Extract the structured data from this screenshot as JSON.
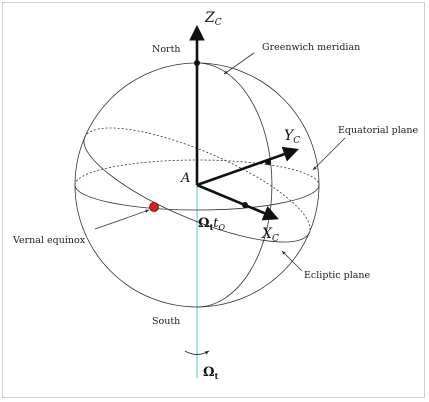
{
  "labels": {
    "north": "North",
    "south": "South",
    "greenwich_meridian": "Greenwich meridian",
    "equatorial_plane": "Equatorial plane",
    "ecliptic_plane": "Ecliptic plane",
    "vernal_equinox": "Vernal equinox",
    "origin": "A"
  },
  "axes": {
    "z": {
      "letter": "Z",
      "subscript": "C"
    },
    "y": {
      "letter": "Y",
      "subscript": "C"
    },
    "x": {
      "letter": "X",
      "subscript": "C"
    }
  },
  "rotation": {
    "angle_symbol": "Ω",
    "angle_subscript": "t",
    "time_symbol": "t",
    "time_subscript": "O",
    "rate_symbol": "Ω",
    "rate_subscript": "t"
  },
  "colors": {
    "line": "#333333",
    "arrow": "#111111",
    "rotation_axis": "#5fc3d6",
    "vernal_point": "#d81e1e"
  }
}
